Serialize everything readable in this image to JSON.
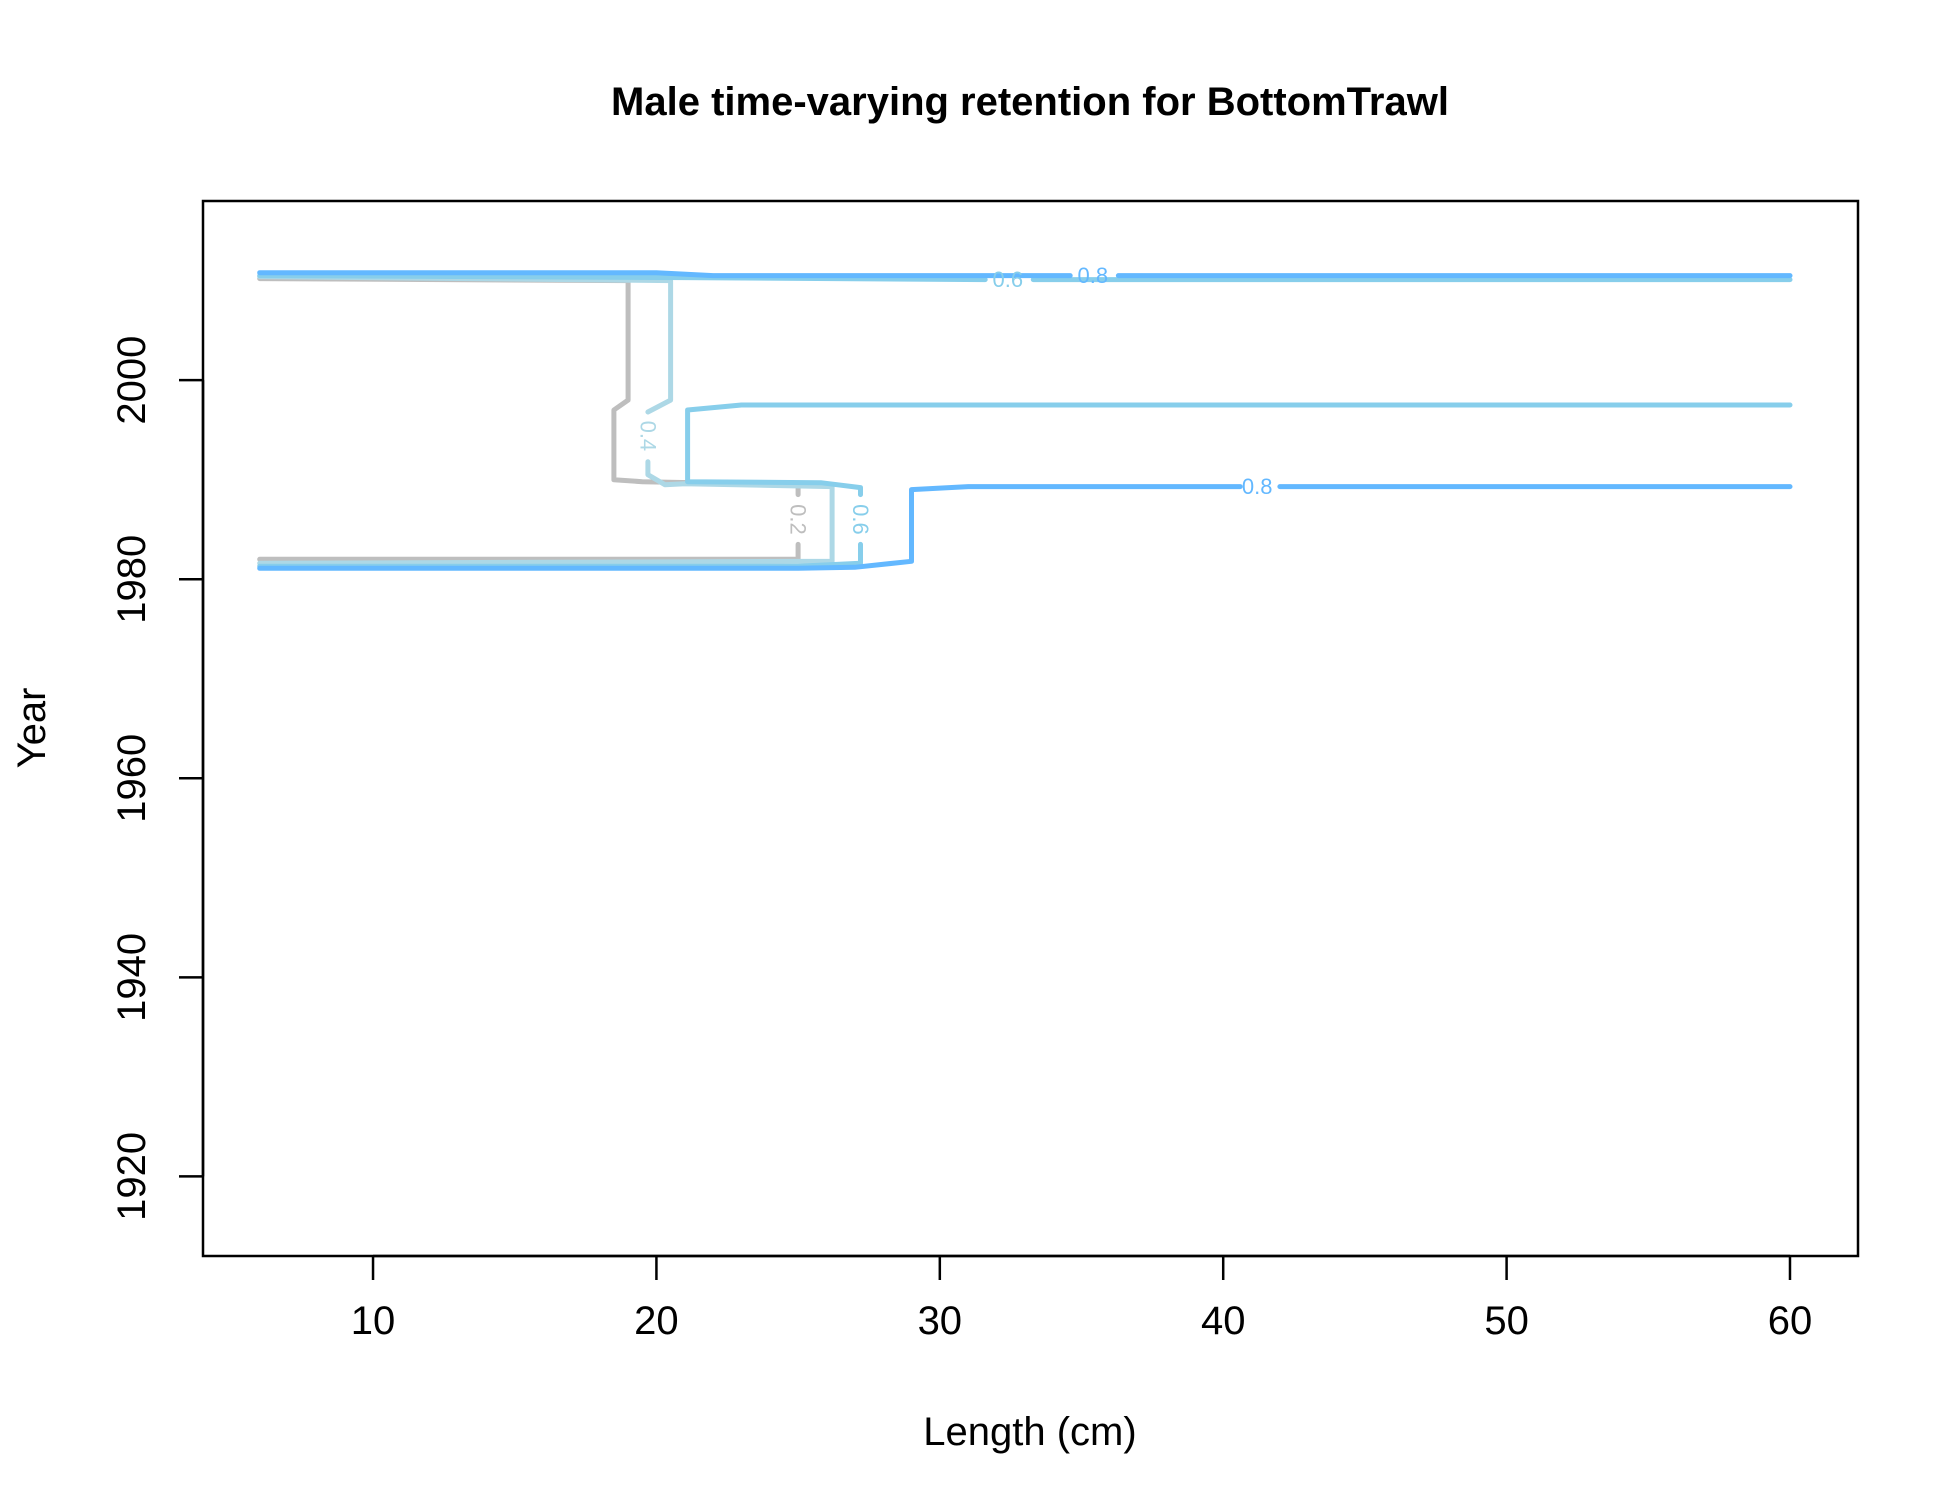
{
  "chart_data": {
    "type": "line",
    "chart_kind": "contour",
    "title": "Male time-varying retention for BottomTrawl",
    "xlabel": "Length (cm)",
    "ylabel": "Year",
    "xlim": [
      4,
      62.4
    ],
    "ylim": [
      1912,
      2018
    ],
    "xticks": [
      10,
      20,
      30,
      40,
      50,
      60
    ],
    "yticks": [
      1920,
      1940,
      1960,
      1980,
      2000
    ],
    "grid": false,
    "levels": [
      {
        "name": "0.2",
        "color": "#BEBEBE",
        "paths": [
          [
            [
              6,
              1982
            ],
            [
              25,
              1982
            ],
            [
              25,
              1983.5
            ]
          ],
          [
            [
              25,
              1988.5
            ],
            [
              25,
              1989.5
            ],
            [
              19.5,
              1989.8
            ],
            [
              18.5,
              1990
            ],
            [
              18.5,
              1997
            ],
            [
              19,
              1998
            ],
            [
              19,
              2010
            ],
            [
              6,
              2010.2
            ]
          ]
        ],
        "label": {
          "text": "0.2",
          "x": 25,
          "y": 1986,
          "rotate": 90
        }
      },
      {
        "name": "0.4",
        "color": "#ADD8E6",
        "paths": [
          [
            [
              6,
              1981.6
            ],
            [
              26.2,
              1981.8
            ],
            [
              26.2,
              1989.3
            ],
            [
              21,
              1989.6
            ],
            [
              20.3,
              1989.5
            ],
            [
              19.7,
              1990.5
            ],
            [
              19.7,
              1991.8
            ]
          ],
          [
            [
              19.7,
              1996.8
            ],
            [
              20.5,
              1998
            ],
            [
              20.5,
              2010
            ],
            [
              6,
              2010.4
            ]
          ]
        ],
        "label": {
          "text": "0.4",
          "x": 19.7,
          "y": 1994.4,
          "rotate": 90
        }
      },
      {
        "name": "0.6",
        "color": "#87CEEB",
        "paths": [
          [
            [
              6,
              1981.3
            ],
            [
              25,
              1981.3
            ],
            [
              27.2,
              1981.6
            ],
            [
              27.2,
              1983.5
            ]
          ],
          [
            [
              27.2,
              1988.5
            ],
            [
              27.2,
              1989.2
            ],
            [
              25.8,
              1989.7
            ],
            [
              21.1,
              1989.8
            ],
            [
              21.1,
              1997
            ],
            [
              23,
              1997.5
            ],
            [
              60,
              1997.5
            ]
          ],
          [
            [
              6,
              2010.5
            ],
            [
              21,
              2010.3
            ],
            [
              31.6,
              2010.1
            ]
          ],
          [
            [
              33.3,
              2010.1
            ],
            [
              60,
              2010.1
            ]
          ]
        ],
        "label": {
          "text": "0.6",
          "x": 27.2,
          "y": 1986,
          "rotate": 90
        },
        "label2": {
          "text": "0.6",
          "x": 32.4,
          "y": 2010.1,
          "rotate": 0
        }
      },
      {
        "name": "0.8",
        "color": "#63B8FF",
        "paths": [
          [
            [
              6,
              1981.1
            ],
            [
              25,
              1981.1
            ],
            [
              27,
              1981.2
            ],
            [
              29,
              1981.8
            ],
            [
              29,
              1989
            ],
            [
              31,
              1989.3
            ],
            [
              40.6,
              1989.3
            ]
          ],
          [
            [
              42,
              1989.3
            ],
            [
              60,
              1989.3
            ]
          ],
          [
            [
              6,
              2010.8
            ],
            [
              20,
              2010.8
            ],
            [
              22,
              2010.5
            ],
            [
              34.6,
              2010.5
            ]
          ],
          [
            [
              36.3,
              2010.5
            ],
            [
              60,
              2010.5
            ]
          ]
        ],
        "label": {
          "text": "0.8",
          "x": 41.2,
          "y": 1989.3,
          "rotate": 0
        },
        "label2": {
          "text": "0.8",
          "x": 35.4,
          "y": 2010.5,
          "rotate": 0
        }
      }
    ]
  }
}
